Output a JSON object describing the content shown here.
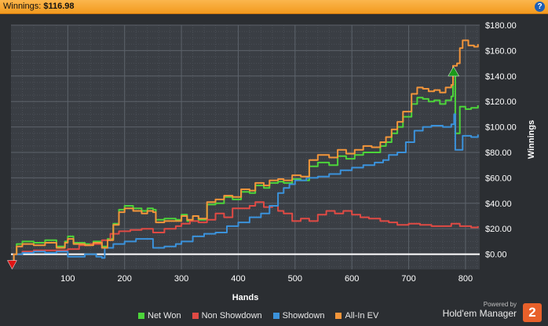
{
  "header": {
    "label": "Winnings:",
    "value": "$116.98",
    "help_icon": "help-icon"
  },
  "chart_data": {
    "type": "line",
    "title": "",
    "xlabel": "Hands",
    "ylabel": "Winnings",
    "xlim": [
      0,
      825
    ],
    "ylim": [
      -12,
      180
    ],
    "x_ticks": [
      100,
      200,
      300,
      400,
      500,
      600,
      700,
      800
    ],
    "y_ticks": [
      0,
      20,
      40,
      60,
      80,
      100,
      120,
      140,
      160,
      180
    ],
    "y_tick_labels": [
      "$0.00",
      "$20.00",
      "$40.00",
      "$60.00",
      "$80.00",
      "$100.00",
      "$120.00",
      "$140.00",
      "$160.00",
      "$180.00"
    ],
    "grid": true,
    "legend_position": "bottom",
    "zero_line": true,
    "series": [
      {
        "name": "Net Won",
        "color": "#4cd43a",
        "points": [
          [
            0,
            -8
          ],
          [
            5,
            0
          ],
          [
            10,
            8
          ],
          [
            20,
            10
          ],
          [
            40,
            9
          ],
          [
            60,
            11
          ],
          [
            80,
            6
          ],
          [
            95,
            10
          ],
          [
            100,
            14
          ],
          [
            110,
            9
          ],
          [
            130,
            8
          ],
          [
            145,
            10
          ],
          [
            160,
            6
          ],
          [
            170,
            12
          ],
          [
            180,
            24
          ],
          [
            190,
            35
          ],
          [
            200,
            38
          ],
          [
            215,
            36
          ],
          [
            230,
            34
          ],
          [
            240,
            36
          ],
          [
            250,
            35
          ],
          [
            255,
            27
          ],
          [
            270,
            28
          ],
          [
            290,
            27
          ],
          [
            300,
            31
          ],
          [
            310,
            26
          ],
          [
            320,
            30
          ],
          [
            330,
            27
          ],
          [
            345,
            39
          ],
          [
            360,
            40
          ],
          [
            375,
            45
          ],
          [
            390,
            43
          ],
          [
            405,
            49
          ],
          [
            420,
            48
          ],
          [
            430,
            54
          ],
          [
            445,
            52
          ],
          [
            455,
            56
          ],
          [
            470,
            57
          ],
          [
            480,
            56
          ],
          [
            495,
            59
          ],
          [
            510,
            58
          ],
          [
            525,
            69
          ],
          [
            540,
            72
          ],
          [
            560,
            70
          ],
          [
            575,
            77
          ],
          [
            590,
            75
          ],
          [
            605,
            78
          ],
          [
            620,
            80
          ],
          [
            635,
            80
          ],
          [
            650,
            85
          ],
          [
            660,
            88
          ],
          [
            670,
            95
          ],
          [
            680,
            100
          ],
          [
            690,
            108
          ],
          [
            705,
            118
          ],
          [
            715,
            123
          ],
          [
            725,
            122
          ],
          [
            735,
            120
          ],
          [
            745,
            121
          ],
          [
            755,
            118
          ],
          [
            765,
            121
          ],
          [
            775,
            124
          ],
          [
            778,
            142
          ],
          [
            782,
            95
          ],
          [
            790,
            116
          ],
          [
            800,
            114
          ],
          [
            810,
            115
          ],
          [
            822,
            117
          ]
        ]
      },
      {
        "name": "Non Showdown",
        "color": "#e04a44",
        "points": [
          [
            0,
            -8
          ],
          [
            5,
            0
          ],
          [
            20,
            2
          ],
          [
            40,
            3
          ],
          [
            60,
            3
          ],
          [
            80,
            3
          ],
          [
            100,
            4
          ],
          [
            120,
            7
          ],
          [
            140,
            8
          ],
          [
            160,
            11
          ],
          [
            175,
            16
          ],
          [
            190,
            18
          ],
          [
            210,
            19
          ],
          [
            230,
            20
          ],
          [
            250,
            17
          ],
          [
            270,
            20
          ],
          [
            290,
            22
          ],
          [
            300,
            24
          ],
          [
            315,
            26
          ],
          [
            330,
            25
          ],
          [
            345,
            27
          ],
          [
            360,
            32
          ],
          [
            375,
            29
          ],
          [
            390,
            36
          ],
          [
            405,
            36
          ],
          [
            420,
            38
          ],
          [
            430,
            41
          ],
          [
            445,
            37
          ],
          [
            460,
            38
          ],
          [
            470,
            34
          ],
          [
            480,
            32
          ],
          [
            495,
            26
          ],
          [
            510,
            28
          ],
          [
            525,
            26
          ],
          [
            540,
            31
          ],
          [
            555,
            34
          ],
          [
            570,
            32
          ],
          [
            585,
            34
          ],
          [
            600,
            31
          ],
          [
            615,
            29
          ],
          [
            630,
            28
          ],
          [
            650,
            26
          ],
          [
            665,
            25
          ],
          [
            680,
            23
          ],
          [
            700,
            24
          ],
          [
            720,
            23
          ],
          [
            740,
            22
          ],
          [
            760,
            22
          ],
          [
            775,
            24
          ],
          [
            790,
            22
          ],
          [
            810,
            21
          ],
          [
            822,
            22
          ]
        ]
      },
      {
        "name": "Showdown",
        "color": "#3b92db",
        "points": [
          [
            0,
            -8
          ],
          [
            5,
            0
          ],
          [
            20,
            1
          ],
          [
            40,
            2
          ],
          [
            60,
            1
          ],
          [
            80,
            2
          ],
          [
            100,
            -2
          ],
          [
            130,
            0
          ],
          [
            150,
            -2
          ],
          [
            160,
            -3
          ],
          [
            165,
            5
          ],
          [
            180,
            8
          ],
          [
            200,
            10
          ],
          [
            220,
            12
          ],
          [
            240,
            12
          ],
          [
            250,
            5
          ],
          [
            270,
            6
          ],
          [
            290,
            8
          ],
          [
            300,
            10
          ],
          [
            320,
            14
          ],
          [
            340,
            16
          ],
          [
            360,
            17
          ],
          [
            380,
            22
          ],
          [
            400,
            25
          ],
          [
            420,
            29
          ],
          [
            440,
            32
          ],
          [
            455,
            38
          ],
          [
            470,
            48
          ],
          [
            480,
            52
          ],
          [
            490,
            55
          ],
          [
            500,
            58
          ],
          [
            520,
            60
          ],
          [
            540,
            61
          ],
          [
            560,
            63
          ],
          [
            580,
            66
          ],
          [
            600,
            68
          ],
          [
            620,
            70
          ],
          [
            640,
            72
          ],
          [
            655,
            74
          ],
          [
            665,
            78
          ],
          [
            680,
            80
          ],
          [
            695,
            88
          ],
          [
            710,
            97
          ],
          [
            725,
            100
          ],
          [
            740,
            101
          ],
          [
            760,
            100
          ],
          [
            775,
            102
          ],
          [
            780,
            110
          ],
          [
            782,
            82
          ],
          [
            795,
            93
          ],
          [
            810,
            92
          ],
          [
            822,
            94
          ]
        ]
      },
      {
        "name": "All-In EV",
        "color": "#f3953a",
        "points": [
          [
            0,
            -8
          ],
          [
            5,
            0
          ],
          [
            10,
            6
          ],
          [
            20,
            8
          ],
          [
            40,
            7
          ],
          [
            60,
            9
          ],
          [
            80,
            5
          ],
          [
            95,
            9
          ],
          [
            100,
            12
          ],
          [
            110,
            8
          ],
          [
            130,
            7
          ],
          [
            145,
            9
          ],
          [
            160,
            5
          ],
          [
            170,
            11
          ],
          [
            180,
            23
          ],
          [
            190,
            33
          ],
          [
            200,
            36
          ],
          [
            215,
            34
          ],
          [
            230,
            32
          ],
          [
            240,
            34
          ],
          [
            250,
            33
          ],
          [
            255,
            25
          ],
          [
            270,
            26
          ],
          [
            290,
            26
          ],
          [
            300,
            30
          ],
          [
            310,
            27
          ],
          [
            320,
            30
          ],
          [
            330,
            28
          ],
          [
            345,
            41
          ],
          [
            360,
            43
          ],
          [
            375,
            46
          ],
          [
            390,
            45
          ],
          [
            405,
            51
          ],
          [
            420,
            50
          ],
          [
            430,
            56
          ],
          [
            445,
            54
          ],
          [
            455,
            58
          ],
          [
            470,
            59
          ],
          [
            480,
            58
          ],
          [
            495,
            62
          ],
          [
            510,
            61
          ],
          [
            525,
            74
          ],
          [
            540,
            78
          ],
          [
            560,
            76
          ],
          [
            575,
            82
          ],
          [
            590,
            79
          ],
          [
            605,
            82
          ],
          [
            620,
            85
          ],
          [
            635,
            84
          ],
          [
            650,
            88
          ],
          [
            660,
            92
          ],
          [
            670,
            98
          ],
          [
            680,
            104
          ],
          [
            690,
            112
          ],
          [
            705,
            126
          ],
          [
            715,
            131
          ],
          [
            725,
            130
          ],
          [
            735,
            128
          ],
          [
            745,
            129
          ],
          [
            755,
            127
          ],
          [
            765,
            131
          ],
          [
            775,
            133
          ],
          [
            778,
            148
          ],
          [
            785,
            150
          ],
          [
            790,
            162
          ],
          [
            795,
            168
          ],
          [
            805,
            164
          ],
          [
            815,
            163
          ],
          [
            822,
            165
          ]
        ]
      }
    ],
    "markers": [
      {
        "type": "min",
        "x": 2,
        "y": -8,
        "color": "#e01414"
      },
      {
        "type": "max",
        "x": 779,
        "y": 143,
        "color": "#1a9a1a"
      }
    ]
  },
  "branding": {
    "powered_by": "Powered by",
    "product": "Hold'em Manager",
    "logo_text": "2"
  }
}
